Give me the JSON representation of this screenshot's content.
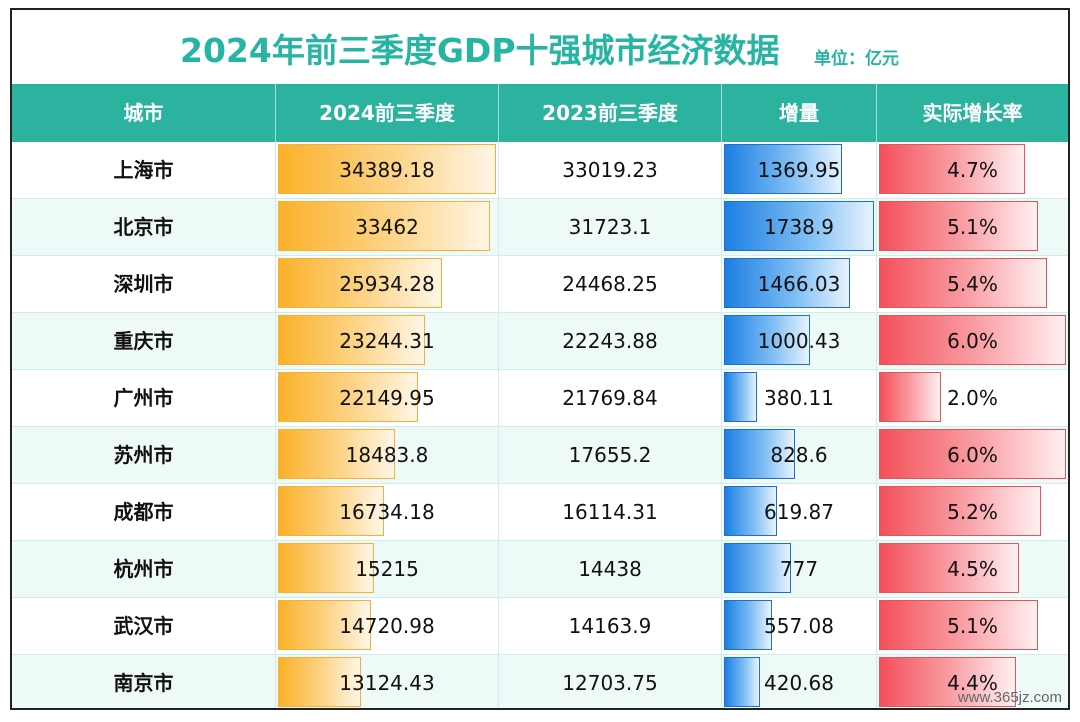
{
  "title": "2024年前三季度GDP十强城市经济数据",
  "unit": "单位：亿元",
  "watermark": "www.365jz.com",
  "headers": {
    "city": "城市",
    "gdp2024": "2024前三季度",
    "gdp2023": "2023前三季度",
    "increase": "增量",
    "growth": "实际增长率"
  },
  "colors": {
    "header_bg": "#2bb3a0",
    "title": "#26b5a3",
    "bar_2024": "#fbb129",
    "bar_increase": "#1c7fe2",
    "bar_growth": "#f4505a"
  },
  "chart_data": {
    "type": "table",
    "columns": [
      "城市",
      "2024前三季度",
      "2023前三季度",
      "增量",
      "实际增长率"
    ],
    "rows": [
      {
        "city": "上海市",
        "gdp2024": "34389.18",
        "gdp2023": "33019.23",
        "increase": "1369.95",
        "growth": "4.7%"
      },
      {
        "city": "北京市",
        "gdp2024": "33462",
        "gdp2023": "31723.1",
        "increase": "1738.9",
        "growth": "5.1%"
      },
      {
        "city": "深圳市",
        "gdp2024": "25934.28",
        "gdp2023": "24468.25",
        "increase": "1466.03",
        "growth": "5.4%"
      },
      {
        "city": "重庆市",
        "gdp2024": "23244.31",
        "gdp2023": "22243.88",
        "increase": "1000.43",
        "growth": "6.0%"
      },
      {
        "city": "广州市",
        "gdp2024": "22149.95",
        "gdp2023": "21769.84",
        "increase": "380.11",
        "growth": "2.0%"
      },
      {
        "city": "苏州市",
        "gdp2024": "18483.8",
        "gdp2023": "17655.2",
        "increase": "828.6",
        "growth": "6.0%"
      },
      {
        "city": "成都市",
        "gdp2024": "16734.18",
        "gdp2023": "16114.31",
        "increase": "619.87",
        "growth": "5.2%"
      },
      {
        "city": "杭州市",
        "gdp2024": "15215",
        "gdp2023": "14438",
        "increase": "777",
        "growth": "4.5%"
      },
      {
        "city": "武汉市",
        "gdp2024": "14720.98",
        "gdp2023": "14163.9",
        "increase": "557.08",
        "growth": "5.1%"
      },
      {
        "city": "南京市",
        "gdp2024": "13124.43",
        "gdp2023": "12703.75",
        "increase": "420.68",
        "growth": "4.4%"
      }
    ]
  }
}
